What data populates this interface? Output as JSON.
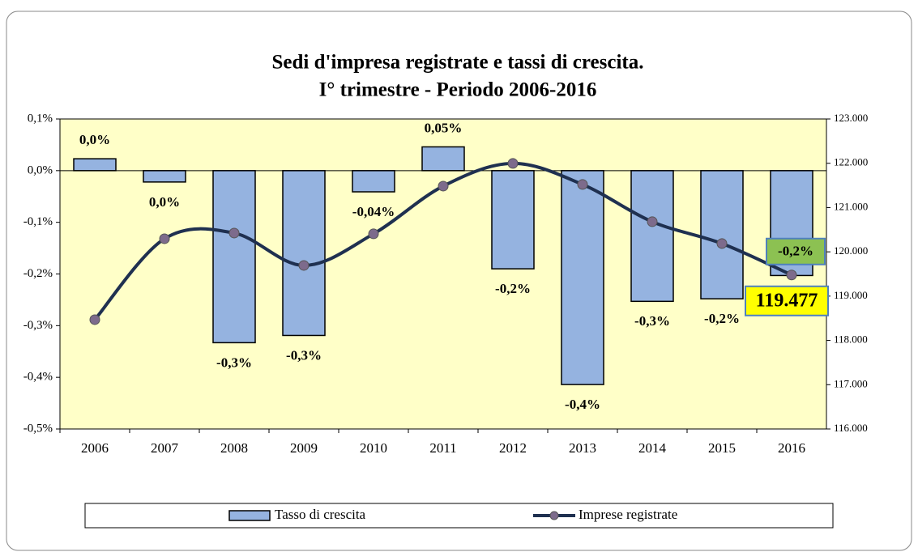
{
  "chart_data": {
    "type": "bar_line",
    "title": "Sedi d'impresa registrate e tassi di crescita.",
    "subtitle": "I° trimestre - Periodo 2006-2016",
    "categories": [
      "2006",
      "2007",
      "2008",
      "2009",
      "2010",
      "2011",
      "2012",
      "2013",
      "2014",
      "2015",
      "2016"
    ],
    "series": [
      {
        "name": "Tasso di crescita",
        "type": "bar",
        "color": "#95b3e0",
        "axis": "y",
        "values": [
          0.023,
          -0.022,
          -0.333,
          -0.319,
          -0.041,
          0.046,
          -0.19,
          -0.414,
          -0.253,
          -0.248,
          -0.203
        ],
        "value_labels": [
          "0,0%",
          "0,0%",
          "-0,3%",
          "-0,3%",
          "-0,04%",
          "0,05%",
          "-0,2%",
          "-0,4%",
          "-0,3%",
          "-0,2%",
          "-0,2%"
        ]
      },
      {
        "name": "Imprese registrate",
        "type": "line",
        "color": "#1f3050",
        "marker_color": "#7d6b8c",
        "axis": "y2",
        "values": [
          118468,
          120296,
          120424,
          119693,
          120406,
          121484,
          121996,
          121521,
          120680,
          120187,
          119477
        ],
        "value_labels": [
          null,
          null,
          null,
          null,
          null,
          null,
          null,
          null,
          null,
          null,
          "119.477"
        ]
      }
    ],
    "ylim": [
      -0.5,
      0.1
    ],
    "yticks": [
      {
        "value": 0.1,
        "label": "0,1%"
      },
      {
        "value": 0.0,
        "label": "0,0%"
      },
      {
        "value": -0.1,
        "label": "-0,1%"
      },
      {
        "value": -0.2,
        "label": "-0,2%"
      },
      {
        "value": -0.3,
        "label": "-0,3%"
      },
      {
        "value": -0.4,
        "label": "-0,4%"
      },
      {
        "value": -0.5,
        "label": "-0,5%"
      }
    ],
    "y2lim": [
      116000,
      123000
    ],
    "y2ticks": [
      {
        "value": 123000,
        "label": "123.000"
      },
      {
        "value": 122000,
        "label": "122.000"
      },
      {
        "value": 121000,
        "label": "121.000"
      },
      {
        "value": 120000,
        "label": "120.000"
      },
      {
        "value": 119000,
        "label": "119.000"
      },
      {
        "value": 118000,
        "label": "118.000"
      },
      {
        "value": 117000,
        "label": "117.000"
      },
      {
        "value": 116000,
        "label": "116.000"
      }
    ],
    "plot_background": "#ffffc8",
    "legend": "bottom"
  }
}
